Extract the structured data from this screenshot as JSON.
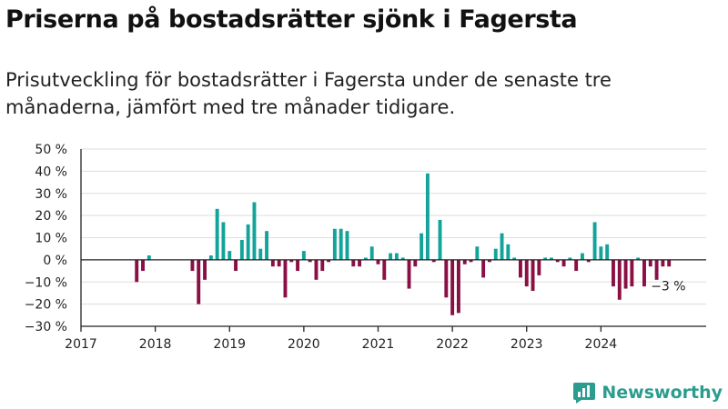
{
  "title": "Priserna på bostadsrätter sjönk i Fagersta",
  "subtitle": "Prisutveckling för bostadsrätter i Fagersta under de senaste tre månaderna, jämfört med tre månader tidigare.",
  "brand": {
    "name": "Newsworthy",
    "icon": "newsworthy-logo-icon"
  },
  "colors": {
    "positive": "#12a39a",
    "negative": "#8a0f45",
    "grid": "#dddddd",
    "axis": "#222222",
    "brand": "#2a9d8f"
  },
  "chart_data": {
    "type": "bar",
    "title": "Priserna på bostadsrätter sjönk i Fagersta",
    "subtitle": "Prisutveckling för bostadsrätter i Fagersta under de senaste tre månaderna, jämfört med tre månader tidigare.",
    "ylim": [
      -30,
      50
    ],
    "yticks": [
      50,
      40,
      30,
      20,
      10,
      0,
      -10,
      -20,
      -30
    ],
    "ytick_labels": [
      "50 %",
      "40 %",
      "30 %",
      "20 %",
      "10 %",
      "0 %",
      "−10 %",
      "−20 %",
      "−30 %"
    ],
    "xlim": [
      "2017-01",
      "2025-06"
    ],
    "xtick_labels": [
      "2017",
      "2018",
      "2019",
      "2020",
      "2021",
      "2022",
      "2023",
      "2024"
    ],
    "grid": true,
    "annotation": {
      "text": "−3 %",
      "x": "2024-12",
      "y": -3
    },
    "x": [
      "2017-10",
      "2017-11",
      "2017-12",
      "2018-07",
      "2018-08",
      "2018-09",
      "2018-10",
      "2018-11",
      "2018-12",
      "2019-01",
      "2019-02",
      "2019-03",
      "2019-04",
      "2019-05",
      "2019-06",
      "2019-07",
      "2019-08",
      "2019-09",
      "2019-10",
      "2019-11",
      "2019-12",
      "2020-01",
      "2020-02",
      "2020-03",
      "2020-04",
      "2020-05",
      "2020-06",
      "2020-07",
      "2020-08",
      "2020-09",
      "2020-10",
      "2020-11",
      "2020-12",
      "2021-01",
      "2021-02",
      "2021-03",
      "2021-04",
      "2021-05",
      "2021-06",
      "2021-07",
      "2021-08",
      "2021-09",
      "2021-10",
      "2021-11",
      "2021-12",
      "2022-01",
      "2022-02",
      "2022-03",
      "2022-04",
      "2022-05",
      "2022-06",
      "2022-07",
      "2022-08",
      "2022-09",
      "2022-10",
      "2022-11",
      "2022-12",
      "2023-01",
      "2023-02",
      "2023-03",
      "2023-04",
      "2023-05",
      "2023-06",
      "2023-07",
      "2023-08",
      "2023-09",
      "2023-10",
      "2023-11",
      "2023-12",
      "2024-01",
      "2024-02",
      "2024-03",
      "2024-04",
      "2024-05",
      "2024-06",
      "2024-07",
      "2024-08",
      "2024-09",
      "2024-10",
      "2024-11",
      "2024-12"
    ],
    "values": [
      -10,
      -5,
      2,
      -5,
      -20,
      -9,
      2,
      23,
      17,
      4,
      -5,
      9,
      16,
      26,
      5,
      13,
      -3,
      -3,
      -17,
      -1,
      -5,
      4,
      -1,
      -9,
      -5,
      -1,
      14,
      14,
      13,
      -3,
      -3,
      1,
      6,
      -2,
      -9,
      3,
      3,
      1,
      -13,
      -3,
      12,
      39,
      -1,
      18,
      -17,
      -25,
      -24,
      -2,
      -1,
      6,
      -8,
      -1,
      5,
      12,
      7,
      1,
      -8,
      -12,
      -14,
      -7,
      1,
      1,
      -1,
      -3,
      1,
      -5,
      3,
      -1,
      17,
      6,
      7,
      -12,
      -18,
      -13,
      -12,
      1,
      -12,
      -3,
      -9,
      -3,
      -3
    ]
  }
}
